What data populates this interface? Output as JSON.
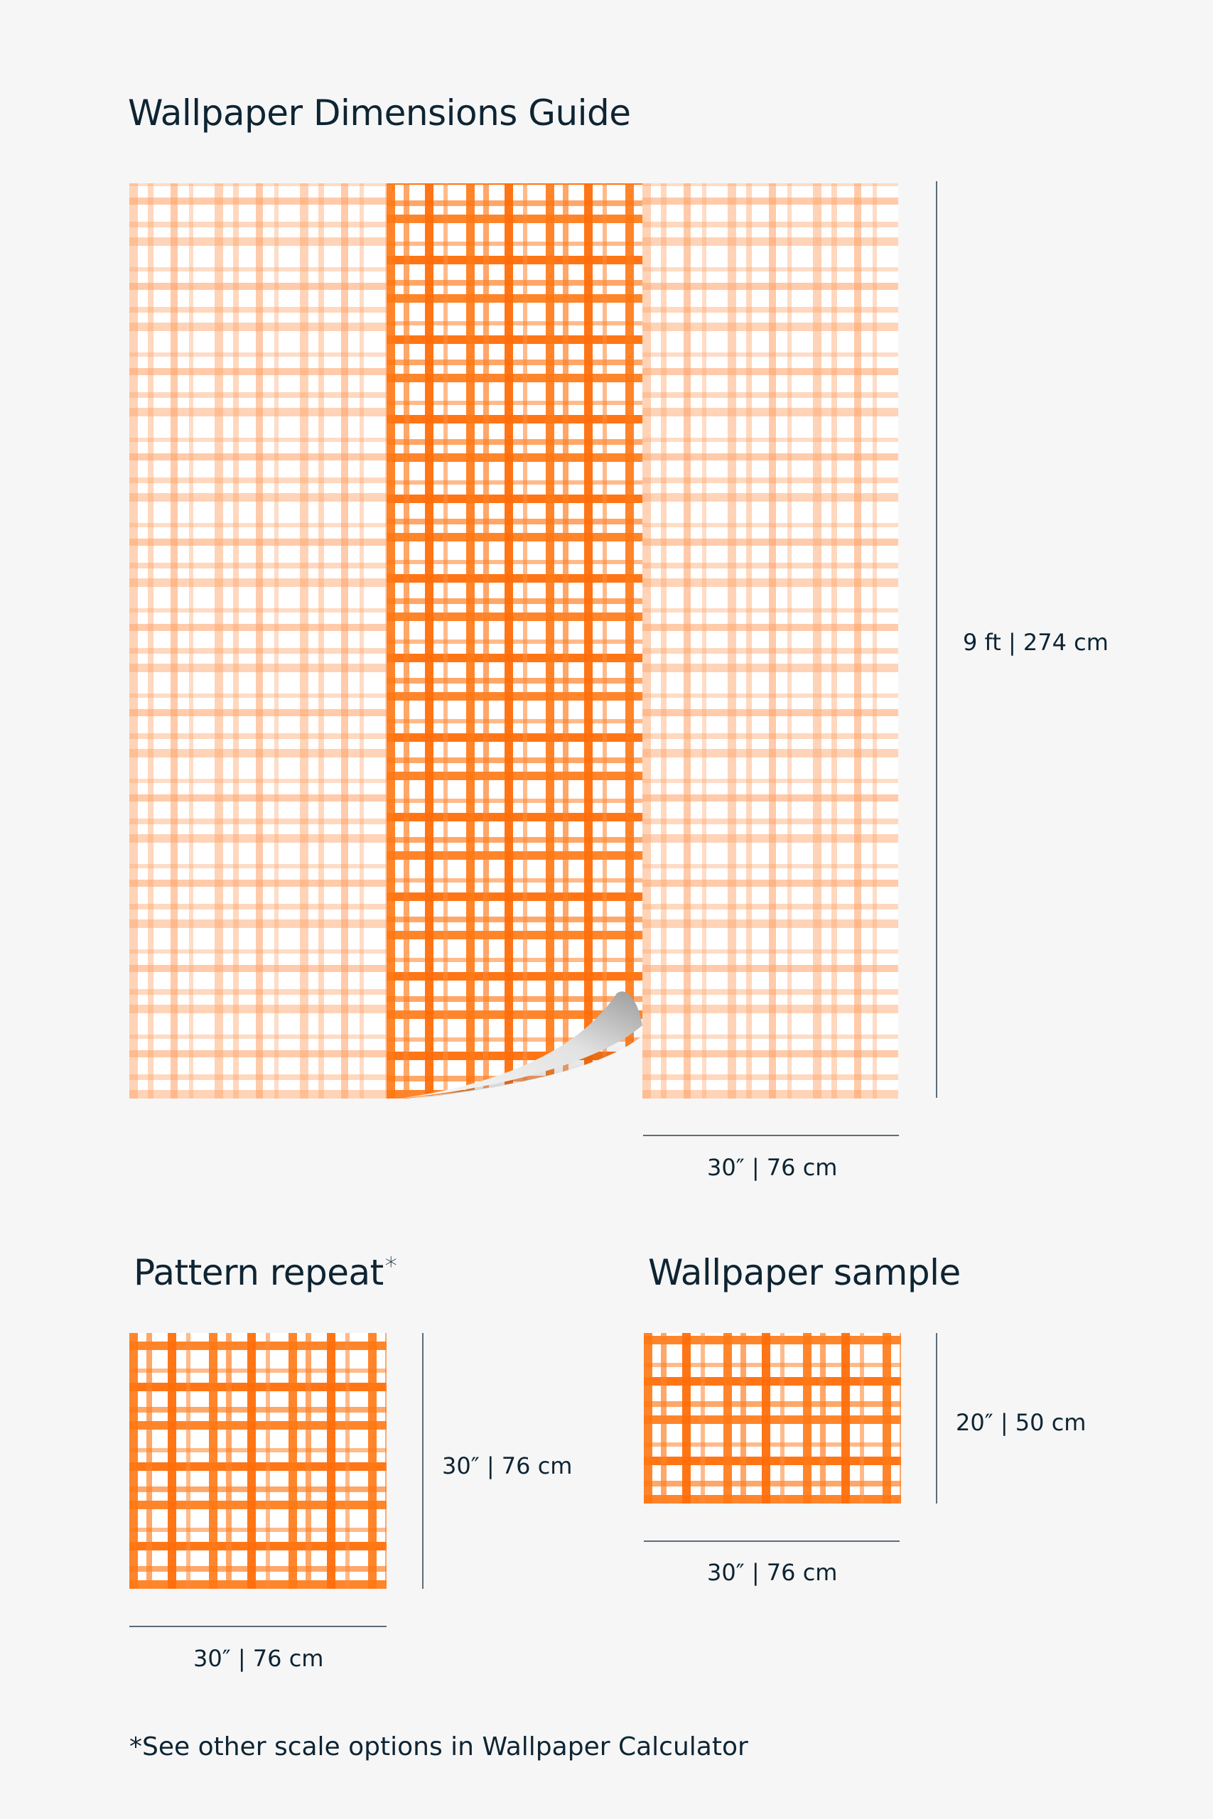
{
  "title": "Wallpaper Dimensions Guide",
  "panel": {
    "height_label": "9 ft | 274 cm",
    "width_label": "30″ | 76 cm"
  },
  "pattern_repeat": {
    "title": "Pattern repeat",
    "asterisk": "*",
    "height_label": "30″ | 76 cm",
    "width_label": "30″ | 76 cm"
  },
  "sample": {
    "title": "Wallpaper sample",
    "height_label": "20″ | 50 cm",
    "width_label": "30″ | 76 cm"
  },
  "footnote": "*See other scale options in Wallpaper Calculator",
  "colors": {
    "background": "#f6f6f6",
    "text": "#0e2433",
    "plaid_accent": "#ff7a1a",
    "dimension_line": "#5c6d7c"
  }
}
